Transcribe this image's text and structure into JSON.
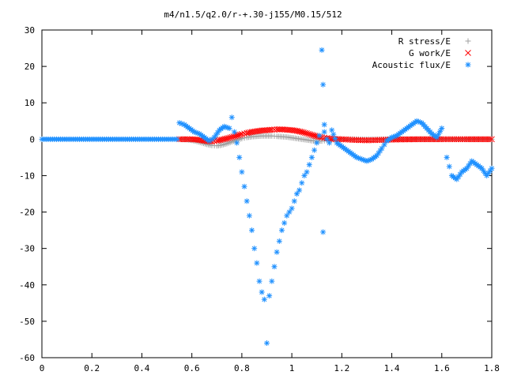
{
  "chart_data": {
    "type": "scatter",
    "title": "m4/n1.5/q2.0/r-+.30-j155/M0.15/512",
    "xlabel": "",
    "ylabel": "",
    "xlim": [
      0,
      1.8
    ],
    "ylim": [
      -60,
      30
    ],
    "x_ticks": [
      "0",
      "0.2",
      "0.4",
      "0.6",
      "0.8",
      "1",
      "1.2",
      "1.4",
      "1.6",
      "1.8"
    ],
    "y_ticks": [
      "30",
      "20",
      "10",
      "0",
      "-10",
      "-20",
      "-30",
      "-40",
      "-50",
      "-60"
    ],
    "legend_position": "top-right",
    "grid": false,
    "series": [
      {
        "name": "R stress/E",
        "marker": "+",
        "color": "#a0a0a0",
        "x": [
          0.55,
          0.58,
          0.6,
          0.62,
          0.64,
          0.66,
          0.68,
          0.7,
          0.72,
          0.74,
          0.76,
          0.78,
          0.8,
          0.82,
          0.84,
          0.86,
          0.88,
          0.9,
          0.92,
          0.94,
          0.96,
          0.98,
          1.0,
          1.02,
          1.04,
          1.06,
          1.08,
          1.1,
          1.12,
          1.14,
          1.16,
          1.2,
          1.25,
          1.3,
          1.4,
          1.5,
          1.6,
          1.7,
          1.8
        ],
        "y": [
          0.0,
          -0.1,
          -0.3,
          -0.6,
          -1.0,
          -1.4,
          -1.7,
          -1.8,
          -1.6,
          -1.2,
          -0.7,
          -0.2,
          0.2,
          0.5,
          0.7,
          0.8,
          0.9,
          0.9,
          0.9,
          0.8,
          0.7,
          0.6,
          0.4,
          0.2,
          0.0,
          -0.2,
          -0.4,
          -0.5,
          -0.5,
          -0.3,
          -0.1,
          0.0,
          0.0,
          0.0,
          0.0,
          0.0,
          0.0,
          0.0,
          0.0
        ]
      },
      {
        "name": "G work/E",
        "marker": "x",
        "color": "#ff0000",
        "x": [
          0.55,
          0.58,
          0.6,
          0.62,
          0.64,
          0.66,
          0.68,
          0.7,
          0.72,
          0.74,
          0.76,
          0.78,
          0.8,
          0.82,
          0.84,
          0.86,
          0.88,
          0.9,
          0.92,
          0.94,
          0.96,
          0.98,
          1.0,
          1.02,
          1.04,
          1.06,
          1.08,
          1.1,
          1.12,
          1.14,
          1.16,
          1.2,
          1.25,
          1.3,
          1.35,
          1.4,
          1.5,
          1.6,
          1.7,
          1.8
        ],
        "y": [
          0.0,
          0.0,
          0.0,
          -0.1,
          -0.3,
          -0.5,
          -0.6,
          -0.4,
          -0.1,
          0.2,
          0.6,
          1.0,
          1.4,
          1.7,
          2.0,
          2.2,
          2.4,
          2.5,
          2.6,
          2.7,
          2.7,
          2.6,
          2.5,
          2.3,
          2.0,
          1.6,
          1.2,
          0.8,
          0.5,
          0.3,
          0.1,
          0.0,
          -0.2,
          -0.3,
          -0.2,
          -0.1,
          0.0,
          0.0,
          0.0,
          0.0
        ]
      },
      {
        "name": "Acoustic flux/E",
        "marker": "*",
        "color": "#1e90ff",
        "x": [
          0.0,
          0.05,
          0.1,
          0.15,
          0.2,
          0.25,
          0.3,
          0.35,
          0.4,
          0.45,
          0.5,
          0.54,
          0.55,
          0.57,
          0.59,
          0.61,
          0.63,
          0.65,
          0.67,
          0.69,
          0.71,
          0.73,
          0.75,
          0.76,
          0.77,
          0.78,
          0.79,
          0.8,
          0.81,
          0.82,
          0.83,
          0.84,
          0.85,
          0.86,
          0.87,
          0.88,
          0.89,
          0.9,
          0.91,
          0.92,
          0.93,
          0.94,
          0.95,
          0.96,
          0.97,
          0.98,
          0.99,
          1.0,
          1.01,
          1.02,
          1.03,
          1.04,
          1.05,
          1.06,
          1.07,
          1.08,
          1.09,
          1.1,
          1.11,
          1.12,
          1.125,
          1.125,
          1.13,
          1.13,
          1.14,
          1.15,
          1.16,
          1.18,
          1.2,
          1.22,
          1.24,
          1.26,
          1.28,
          1.3,
          1.32,
          1.34,
          1.36,
          1.38,
          1.4,
          1.42,
          1.44,
          1.46,
          1.48,
          1.5,
          1.52,
          1.54,
          1.56,
          1.58,
          1.6,
          1.62,
          1.64,
          1.66,
          1.68,
          1.7,
          1.72,
          1.74,
          1.76,
          1.78,
          1.8
        ],
        "y": [
          0.0,
          0.0,
          0.0,
          0.0,
          0.0,
          0.0,
          0.0,
          0.0,
          0.0,
          0.0,
          0.0,
          0.0,
          4.5,
          4.0,
          3.0,
          2.0,
          1.5,
          0.5,
          -0.5,
          0.5,
          2.5,
          3.5,
          3.0,
          6.0,
          2.0,
          -1.0,
          -5.0,
          -9.0,
          -13.0,
          -17.0,
          -21.0,
          -25.0,
          -30.0,
          -34.0,
          -39.0,
          -42.0,
          -44.0,
          -56.0,
          -43.0,
          -39.0,
          -35.0,
          -31.0,
          -28.0,
          -25.0,
          -23.0,
          -21.0,
          -20.0,
          -19.0,
          -17.0,
          -15.0,
          -14.0,
          -12.0,
          -10.0,
          -9.0,
          -7.0,
          -5.0,
          -3.0,
          -1.0,
          1.0,
          24.5,
          15.0,
          -25.5,
          4.0,
          2.0,
          0.0,
          -1.0,
          2.5,
          -1.0,
          -2.0,
          -3.0,
          -4.0,
          -5.0,
          -5.5,
          -6.0,
          -5.5,
          -4.5,
          -2.5,
          -0.5,
          0.5,
          1.0,
          2.0,
          3.0,
          4.0,
          5.0,
          4.5,
          3.0,
          1.5,
          0.5,
          3.0,
          -5.0,
          -10.0,
          -11.0,
          -9.0,
          -8.0,
          -6.0,
          -7.0,
          -8.0,
          -10.0,
          -8.0
        ]
      }
    ]
  }
}
